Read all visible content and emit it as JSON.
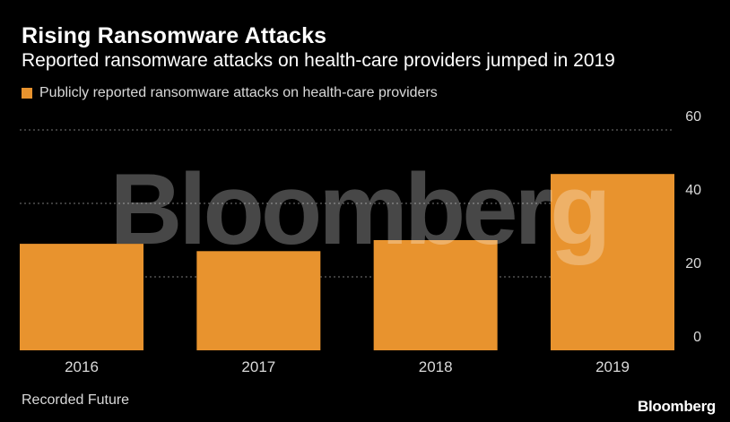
{
  "title": "Rising Ransomware Attacks",
  "subtitle": "Reported ransomware attacks on health-care providers jumped in 2019",
  "legend_label": "Publicly reported ransomware attacks on health-care providers",
  "source": "Recorded Future",
  "brand": "Bloomberg",
  "watermark": "Bloomberg",
  "colors": {
    "bar": "#E8932E",
    "background": "#000000",
    "grid": "#777777",
    "text": "#ffffff",
    "muted": "#d9d9d9"
  },
  "chart_data": {
    "type": "bar",
    "categories": [
      "2016",
      "2017",
      "2018",
      "2019"
    ],
    "series": [
      {
        "name": "Publicly reported ransomware attacks on health-care providers",
        "values": [
          29,
          27,
          30,
          48
        ]
      }
    ],
    "ylim": [
      0,
      60
    ],
    "yticks": [
      0,
      20,
      40,
      60
    ],
    "grid": true,
    "legend_position": "top-left",
    "title": "Rising Ransomware Attacks",
    "subtitle": "Reported ransomware attacks on health-care providers jumped in 2019"
  }
}
